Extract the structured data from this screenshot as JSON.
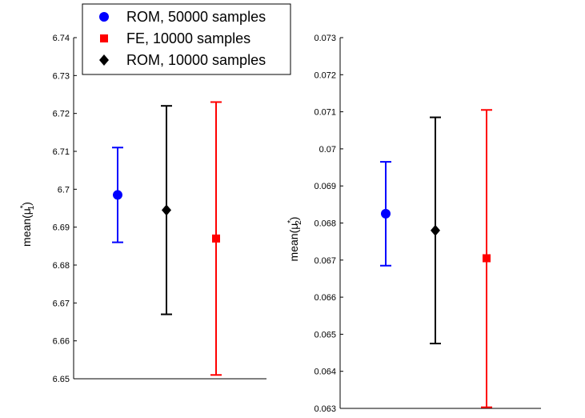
{
  "chart_data": [
    {
      "type": "errorbar",
      "ylabel_text": "mean(μ",
      "ylabel_sup": "*",
      "ylabel_sub": "1",
      "ylabel_close": ")",
      "ylim": [
        6.65,
        6.74
      ],
      "yticks": [
        6.65,
        6.66,
        6.67,
        6.68,
        6.69,
        6.7,
        6.71,
        6.72,
        6.73,
        6.74
      ],
      "ytick_labels": [
        "6.65",
        "6.66",
        "6.67",
        "6.68",
        "6.69",
        "6.7",
        "6.71",
        "6.72",
        "6.73",
        "6.74"
      ],
      "series": [
        {
          "name": "ROM, 50000 samples",
          "marker": "circle",
          "color": "#0000ff",
          "position": 1,
          "mean": 6.6985,
          "lower": 6.686,
          "upper": 6.711
        },
        {
          "name": "ROM, 10000 samples",
          "marker": "diamond",
          "color": "#000000",
          "position": 2,
          "mean": 6.6945,
          "lower": 6.667,
          "upper": 6.722
        },
        {
          "name": "FE, 10000 samples",
          "marker": "square",
          "color": "#ff0000",
          "position": 3,
          "mean": 6.687,
          "lower": 6.651,
          "upper": 6.723
        }
      ]
    },
    {
      "type": "errorbar",
      "ylabel_text": "mean(μ",
      "ylabel_sup": "*",
      "ylabel_sub": "2",
      "ylabel_close": ")",
      "ylim": [
        0.063,
        0.073
      ],
      "yticks": [
        0.063,
        0.064,
        0.065,
        0.066,
        0.067,
        0.068,
        0.069,
        0.07,
        0.071,
        0.072,
        0.073
      ],
      "ytick_labels": [
        "0.063",
        "0.064",
        "0.065",
        "0.066",
        "0.067",
        "0.068",
        "0.069",
        "0.07",
        "0.071",
        "0.072",
        "0.073"
      ],
      "series": [
        {
          "name": "ROM, 50000 samples",
          "marker": "circle",
          "color": "#0000ff",
          "position": 1,
          "mean": 0.06825,
          "lower": 0.06685,
          "upper": 0.06965
        },
        {
          "name": "ROM, 10000 samples",
          "marker": "diamond",
          "color": "#000000",
          "position": 2,
          "mean": 0.0678,
          "lower": 0.06475,
          "upper": 0.07085
        },
        {
          "name": "FE, 10000 samples",
          "marker": "square",
          "color": "#ff0000",
          "position": 3,
          "mean": 0.06705,
          "lower": 0.06303,
          "upper": 0.07105
        }
      ]
    }
  ],
  "legend": {
    "placement": "top-left",
    "items": [
      {
        "label": "ROM, 50000 samples",
        "marker": "circle",
        "color": "#0000ff"
      },
      {
        "label": "FE, 10000 samples",
        "marker": "square",
        "color": "#ff0000"
      },
      {
        "label": "ROM, 10000 samples",
        "marker": "diamond",
        "color": "#000000"
      }
    ]
  }
}
